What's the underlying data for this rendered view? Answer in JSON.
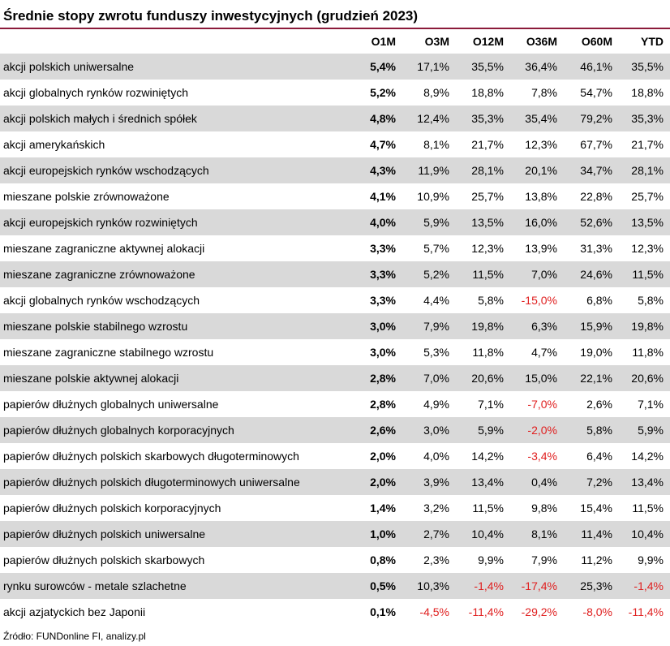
{
  "title": "Średnie stopy zwrotu funduszy inwestycyjnych (grudzień 2023)",
  "columns": [
    "O1M",
    "O3M",
    "O12M",
    "O36M",
    "O60M",
    "YTD"
  ],
  "rows": [
    {
      "name": "akcji polskich uniwersalne",
      "values": [
        "5,4%",
        "17,1%",
        "35,5%",
        "36,4%",
        "46,1%",
        "35,5%"
      ]
    },
    {
      "name": "akcji globalnych rynków rozwiniętych",
      "values": [
        "5,2%",
        "8,9%",
        "18,8%",
        "7,8%",
        "54,7%",
        "18,8%"
      ]
    },
    {
      "name": "akcji polskich małych i średnich spółek",
      "values": [
        "4,8%",
        "12,4%",
        "35,3%",
        "35,4%",
        "79,2%",
        "35,3%"
      ]
    },
    {
      "name": "akcji amerykańskich",
      "values": [
        "4,7%",
        "8,1%",
        "21,7%",
        "12,3%",
        "67,7%",
        "21,7%"
      ]
    },
    {
      "name": "akcji europejskich rynków wschodzących",
      "values": [
        "4,3%",
        "11,9%",
        "28,1%",
        "20,1%",
        "34,7%",
        "28,1%"
      ]
    },
    {
      "name": "mieszane polskie zrównoważone",
      "values": [
        "4,1%",
        "10,9%",
        "25,7%",
        "13,8%",
        "22,8%",
        "25,7%"
      ]
    },
    {
      "name": "akcji europejskich rynków rozwiniętych",
      "values": [
        "4,0%",
        "5,9%",
        "13,5%",
        "16,0%",
        "52,6%",
        "13,5%"
      ]
    },
    {
      "name": "mieszane zagraniczne aktywnej alokacji",
      "values": [
        "3,3%",
        "5,7%",
        "12,3%",
        "13,9%",
        "31,3%",
        "12,3%"
      ]
    },
    {
      "name": "mieszane zagraniczne zrównoważone",
      "values": [
        "3,3%",
        "5,2%",
        "11,5%",
        "7,0%",
        "24,6%",
        "11,5%"
      ]
    },
    {
      "name": "akcji globalnych rynków wschodzących",
      "values": [
        "3,3%",
        "4,4%",
        "5,8%",
        "-15,0%",
        "6,8%",
        "5,8%"
      ]
    },
    {
      "name": "mieszane polskie stabilnego wzrostu",
      "values": [
        "3,0%",
        "7,9%",
        "19,8%",
        "6,3%",
        "15,9%",
        "19,8%"
      ]
    },
    {
      "name": "mieszane zagraniczne stabilnego wzrostu",
      "values": [
        "3,0%",
        "5,3%",
        "11,8%",
        "4,7%",
        "19,0%",
        "11,8%"
      ]
    },
    {
      "name": "mieszane polskie aktywnej alokacji",
      "values": [
        "2,8%",
        "7,0%",
        "20,6%",
        "15,0%",
        "22,1%",
        "20,6%"
      ]
    },
    {
      "name": "papierów dłużnych globalnych uniwersalne",
      "values": [
        "2,8%",
        "4,9%",
        "7,1%",
        "-7,0%",
        "2,6%",
        "7,1%"
      ]
    },
    {
      "name": "papierów dłużnych globalnych korporacyjnych",
      "values": [
        "2,6%",
        "3,0%",
        "5,9%",
        "-2,0%",
        "5,8%",
        "5,9%"
      ]
    },
    {
      "name": "papierów dłużnych polskich skarbowych długoterminowych",
      "values": [
        "2,0%",
        "4,0%",
        "14,2%",
        "-3,4%",
        "6,4%",
        "14,2%"
      ]
    },
    {
      "name": "papierów dłużnych polskich długoterminowych uniwersalne",
      "values": [
        "2,0%",
        "3,9%",
        "13,4%",
        "0,4%",
        "7,2%",
        "13,4%"
      ]
    },
    {
      "name": "papierów dłużnych polskich korporacyjnych",
      "values": [
        "1,4%",
        "3,2%",
        "11,5%",
        "9,8%",
        "15,4%",
        "11,5%"
      ]
    },
    {
      "name": "papierów dłużnych polskich uniwersalne",
      "values": [
        "1,0%",
        "2,7%",
        "10,4%",
        "8,1%",
        "11,4%",
        "10,4%"
      ]
    },
    {
      "name": "papierów dłużnych polskich skarbowych",
      "values": [
        "0,8%",
        "2,3%",
        "9,9%",
        "7,9%",
        "11,2%",
        "9,9%"
      ]
    },
    {
      "name": "rynku surowców - metale szlachetne",
      "values": [
        "0,5%",
        "10,3%",
        "-1,4%",
        "-17,4%",
        "25,3%",
        "-1,4%"
      ]
    },
    {
      "name": "akcji azjatyckich bez Japonii",
      "values": [
        "0,1%",
        "-4,5%",
        "-11,4%",
        "-29,2%",
        "-8,0%",
        "-11,4%"
      ]
    }
  ],
  "source": "Źródło: FUNDonline FI, analizy.pl",
  "colors": {
    "accent_rule": "#8b1a3a",
    "negative": "#e02020",
    "stripe": "#d9d9d9"
  }
}
